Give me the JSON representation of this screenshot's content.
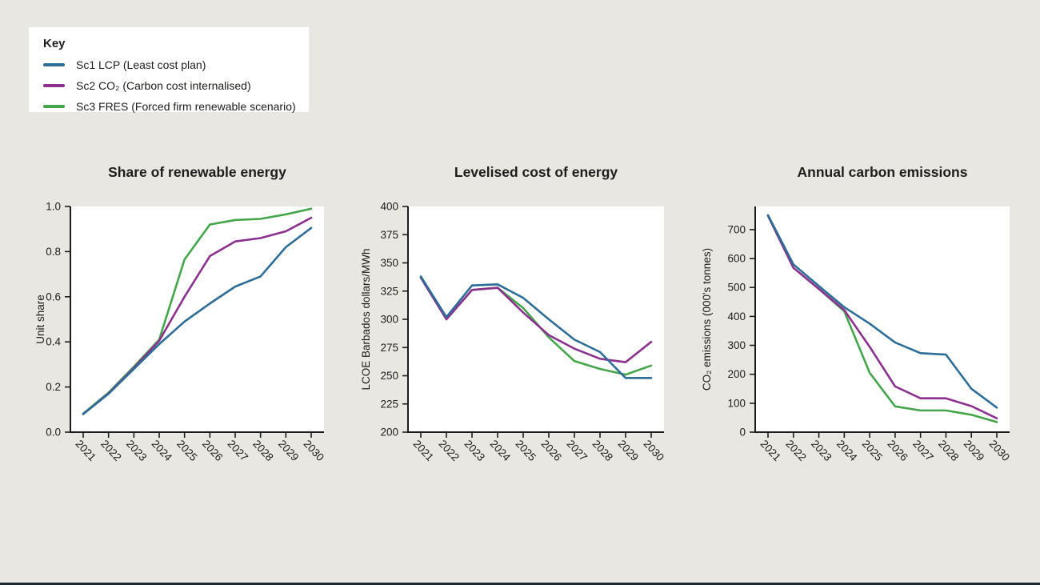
{
  "page": {
    "background": "#e9e7e2",
    "footer_bar_color": "#1b2a30"
  },
  "legend": {
    "title": "Key",
    "position": "top-left",
    "items": [
      {
        "id": "sc1-lcp",
        "label": "Sc1 LCP (Least cost plan)",
        "color": "#2d6e99"
      },
      {
        "id": "sc2-co2",
        "label": "Sc2 CO₂ (Carbon cost internalised)",
        "color": "#8d3191"
      },
      {
        "id": "sc3-fres",
        "label": "Sc3 FRES (Forced firm renewable scenario)",
        "color": "#44a64b"
      }
    ]
  },
  "chart_data": [
    {
      "type": "line",
      "title": "Share of renewable energy",
      "xlabel": "",
      "ylabel": "Unit share",
      "grid": false,
      "x": [
        "2021",
        "2022",
        "2023",
        "2024",
        "2025",
        "2026",
        "2027",
        "2028",
        "2029",
        "2030"
      ],
      "ylim": [
        0,
        1.0
      ],
      "yticks": [
        {
          "v": 0.0,
          "label": "0.0"
        },
        {
          "v": 0.2,
          "label": "0.2"
        },
        {
          "v": 0.4,
          "label": "0.4"
        },
        {
          "v": 0.6,
          "label": "0.6"
        },
        {
          "v": 0.8,
          "label": "0.8"
        },
        {
          "v": 1.0,
          "label": "1.0"
        }
      ],
      "series": [
        {
          "id": "sc3-fres",
          "name": "Sc3 FRES (Forced firm renewable scenario)",
          "color": "#44a64b",
          "values": [
            0.082,
            0.175,
            0.29,
            0.41,
            0.765,
            0.92,
            0.94,
            0.945,
            0.965,
            0.99
          ]
        },
        {
          "id": "sc2-co2",
          "name": "Sc2 CO₂ (Carbon cost internalised)",
          "color": "#8d3191",
          "values": [
            0.08,
            0.172,
            0.285,
            0.405,
            0.6,
            0.78,
            0.845,
            0.86,
            0.89,
            0.95
          ]
        },
        {
          "id": "sc1-lcp",
          "name": "Sc1 LCP (Least cost plan)",
          "color": "#2d6e99",
          "values": [
            0.08,
            0.17,
            0.28,
            0.39,
            0.49,
            0.57,
            0.645,
            0.69,
            0.82,
            0.905
          ]
        }
      ]
    },
    {
      "type": "line",
      "title": "Levelised cost of energy",
      "xlabel": "",
      "ylabel": "LCOE Barbados dollars/MWh",
      "grid": false,
      "x": [
        "2021",
        "2022",
        "2023",
        "2024",
        "2025",
        "2026",
        "2027",
        "2028",
        "2029",
        "2030"
      ],
      "ylim": [
        200,
        400
      ],
      "yticks": [
        {
          "v": 200,
          "label": "200"
        },
        {
          "v": 225,
          "label": "225"
        },
        {
          "v": 250,
          "label": "250"
        },
        {
          "v": 275,
          "label": "275"
        },
        {
          "v": 300,
          "label": "300"
        },
        {
          "v": 325,
          "label": "325"
        },
        {
          "v": 350,
          "label": "350"
        },
        {
          "v": 375,
          "label": "375"
        },
        {
          "v": 400,
          "label": "400"
        }
      ],
      "series": [
        {
          "id": "sc3-fres",
          "name": "Sc3 FRES (Forced firm renewable scenario)",
          "color": "#44a64b",
          "values": [
            337,
            300,
            326,
            328,
            310,
            284,
            263,
            256,
            251,
            259
          ]
        },
        {
          "id": "sc2-co2",
          "name": "Sc2 CO₂ (Carbon cost internalised)",
          "color": "#8d3191",
          "values": [
            337,
            300,
            326,
            328,
            306,
            286,
            274,
            265,
            262,
            280
          ]
        },
        {
          "id": "sc1-lcp",
          "name": "Sc1 LCP (Least cost plan)",
          "color": "#2d6e99",
          "values": [
            338,
            302,
            330,
            331,
            319,
            300,
            282,
            271,
            248,
            248
          ]
        }
      ]
    },
    {
      "type": "line",
      "title": "Annual carbon emissions",
      "xlabel": "",
      "ylabel": "CO₂ emissions (000's tonnes)",
      "grid": false,
      "x": [
        "2021",
        "2022",
        "2023",
        "2024",
        "2025",
        "2026",
        "2027",
        "2028",
        "2029",
        "2030"
      ],
      "ylim": [
        0,
        780
      ],
      "yticks": [
        {
          "v": 0,
          "label": "0"
        },
        {
          "v": 100,
          "label": "100"
        },
        {
          "v": 200,
          "label": "200"
        },
        {
          "v": 300,
          "label": "300"
        },
        {
          "v": 400,
          "label": "400"
        },
        {
          "v": 500,
          "label": "500"
        },
        {
          "v": 600,
          "label": "600"
        },
        {
          "v": 700,
          "label": "700"
        }
      ],
      "series": [
        {
          "id": "sc3-fres",
          "name": "Sc3 FRES (Forced firm renewable scenario)",
          "color": "#44a64b",
          "values": [
            748,
            568,
            495,
            418,
            205,
            89,
            75,
            75,
            60,
            35
          ]
        },
        {
          "id": "sc2-co2",
          "name": "Sc2 CO₂ (Carbon cost internalised)",
          "color": "#8d3191",
          "values": [
            748,
            568,
            495,
            422,
            295,
            158,
            117,
            117,
            90,
            48
          ]
        },
        {
          "id": "sc1-lcp",
          "name": "Sc1 LCP (Least cost plan)",
          "color": "#2d6e99",
          "values": [
            750,
            580,
            505,
            432,
            375,
            310,
            273,
            268,
            150,
            85
          ]
        }
      ]
    }
  ]
}
